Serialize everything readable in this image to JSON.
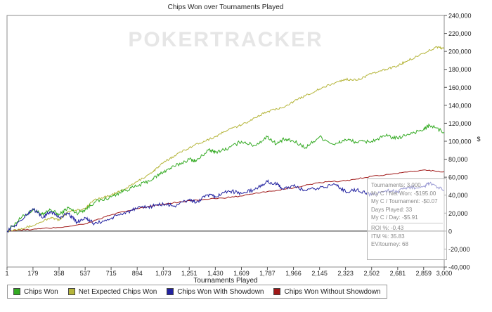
{
  "chart_data": {
    "type": "line",
    "title": "Chips Won over Tournaments Played",
    "xlabel": "Tournaments Played",
    "ylabel": "$",
    "xlim": [
      1,
      3000
    ],
    "ylim": [
      -40000,
      240000
    ],
    "x_ticks": [
      "1",
      "179",
      "358",
      "537",
      "715",
      "894",
      "1,073",
      "1,251",
      "1,430",
      "1,609",
      "1,787",
      "1,966",
      "2,145",
      "2,323",
      "2,502",
      "2,681",
      "2,859",
      "3,000"
    ],
    "y_ticks": [
      "240,000",
      "220,000",
      "200,000",
      "180,000",
      "160,000",
      "140,000",
      "120,000",
      "100,000",
      "80,000",
      "60,000",
      "40,000",
      "20,000",
      "0",
      "-20,000",
      "-40,000"
    ],
    "grid": false,
    "legend_position": "bottom-left",
    "series": [
      {
        "name": "Chips Won",
        "color": "#33aa22",
        "x": [
          1,
          100,
          179,
          250,
          300,
          358,
          420,
          480,
          537,
          600,
          715,
          800,
          894,
          1000,
          1073,
          1150,
          1251,
          1300,
          1380,
          1430,
          1520,
          1609,
          1700,
          1787,
          1850,
          1900,
          1966,
          2050,
          2145,
          2250,
          2323,
          2400,
          2502,
          2600,
          2681,
          2750,
          2859,
          2900,
          3000
        ],
        "y": [
          0,
          15000,
          24000,
          18000,
          24000,
          18000,
          26000,
          20000,
          24000,
          32000,
          38000,
          45000,
          50000,
          58000,
          66000,
          72000,
          80000,
          78000,
          90000,
          88000,
          92000,
          100000,
          95000,
          105000,
          97000,
          102000,
          100000,
          93000,
          105000,
          96000,
          102000,
          99000,
          100000,
          106000,
          103000,
          108000,
          113000,
          118000,
          110000
        ]
      },
      {
        "name": "Net Expected Chips Won",
        "color": "#b5b53a",
        "x": [
          1,
          100,
          179,
          300,
          358,
          420,
          537,
          600,
          715,
          800,
          894,
          1000,
          1073,
          1150,
          1251,
          1350,
          1430,
          1520,
          1609,
          1700,
          1787,
          1880,
          1966,
          2050,
          2145,
          2250,
          2323,
          2400,
          2502,
          2600,
          2681,
          2750,
          2859,
          2950,
          3000
        ],
        "y": [
          0,
          3000,
          6000,
          15000,
          12000,
          22000,
          25000,
          35000,
          40000,
          46000,
          55000,
          66000,
          76000,
          84000,
          93000,
          100000,
          105000,
          113000,
          118000,
          126000,
          133000,
          137000,
          144000,
          151000,
          158000,
          165000,
          169000,
          168000,
          175000,
          180000,
          184000,
          190000,
          198000,
          205000,
          203000
        ]
      },
      {
        "name": "Chips Won With Showdown",
        "color": "#2222a0",
        "x": [
          1,
          100,
          179,
          250,
          300,
          358,
          420,
          480,
          537,
          600,
          715,
          800,
          894,
          1000,
          1073,
          1150,
          1251,
          1300,
          1380,
          1430,
          1520,
          1609,
          1700,
          1787,
          1850,
          1900,
          1966,
          2050,
          2145,
          2250,
          2323,
          2400,
          2502,
          2600,
          2681,
          2750,
          2859,
          2900,
          3000
        ],
        "y": [
          0,
          12000,
          25000,
          15000,
          22000,
          15000,
          20000,
          10000,
          15000,
          8000,
          14000,
          20000,
          25000,
          28000,
          30000,
          28000,
          35000,
          32000,
          40000,
          38000,
          45000,
          42000,
          46000,
          55000,
          52000,
          47000,
          50000,
          45000,
          48000,
          52000,
          44000,
          46000,
          40000,
          45000,
          44000,
          48000,
          50000,
          53000,
          45000
        ]
      },
      {
        "name": "Chips Won Without Showdown",
        "color": "#a01818",
        "x": [
          1,
          179,
          358,
          537,
          715,
          894,
          1073,
          1251,
          1430,
          1609,
          1787,
          1966,
          2145,
          2323,
          2502,
          2681,
          2859,
          3000
        ],
        "y": [
          0,
          2000,
          4000,
          8000,
          18000,
          25000,
          30000,
          34000,
          36000,
          39000,
          44000,
          48000,
          54000,
          56000,
          61000,
          64000,
          68000,
          66000
        ]
      }
    ]
  },
  "watermark": "POKERTRACKER",
  "tooltip": [
    "Tournaments: 3,000",
    "My C / Net Won: -$195.00",
    "My C / Tournament: -$0.07",
    "Days Played: 33",
    "My C / Day: -$5.91",
    "ROI %: -0.43",
    "ITM %: 35.83",
    "EV/tourney: 68"
  ]
}
